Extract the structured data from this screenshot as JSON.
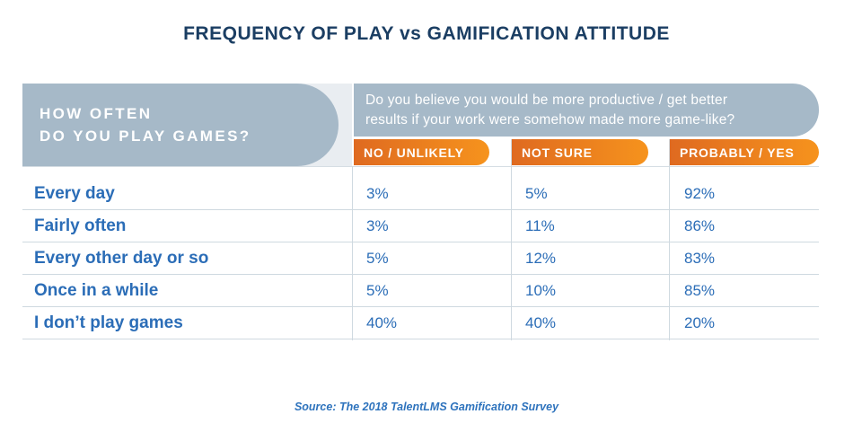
{
  "title": "FREQUENCY OF PLAY vs GAMIFICATION ATTITUDE",
  "header": {
    "row_question": {
      "line1": "HOW OFTEN",
      "line2": "DO YOU PLAY GAMES?"
    },
    "column_question": {
      "line1": "Do you believe you would be more productive / get better",
      "line2": "results if your work were somehow made more game-like?"
    },
    "columns": [
      "NO / UNLIKELY",
      "NOT SURE",
      "PROBABLY / YES"
    ]
  },
  "table": {
    "rows": [
      {
        "label": "Every day",
        "values": [
          "3%",
          "5%",
          "92%"
        ]
      },
      {
        "label": "Fairly often",
        "values": [
          "3%",
          "11%",
          "86%"
        ]
      },
      {
        "label": "Every other day or so",
        "values": [
          "5%",
          "12%",
          "83%"
        ]
      },
      {
        "label": "Once in a while",
        "values": [
          "5%",
          "10%",
          "85%"
        ]
      },
      {
        "label": "I don’t play games",
        "values": [
          "40%",
          "40%",
          "20%"
        ]
      }
    ]
  },
  "source": "Source: The 2018 TalentLMS Gamification Survey",
  "colors": {
    "title_navy": "#1b3e63",
    "row_text_blue": "#2b6db7",
    "header_gray_blue": "#a6b9c8",
    "header_light_gray": "#e9edf1",
    "pill_orange_start": "#df6a20",
    "pill_orange_end": "#f6931d",
    "separator_gray": "#cfd9e0"
  },
  "chart_data": {
    "type": "table",
    "title": "FREQUENCY OF PLAY vs GAMIFICATION ATTITUDE",
    "row_header_question": "HOW OFTEN DO YOU PLAY GAMES?",
    "column_header_question": "Do you believe you would be more productive / get better results if your work were somehow made more game-like?",
    "categories": [
      "Every day",
      "Fairly often",
      "Every other day or so",
      "Once in a while",
      "I don’t play games"
    ],
    "series": [
      {
        "name": "NO / UNLIKELY",
        "values": [
          3,
          3,
          5,
          5,
          40
        ]
      },
      {
        "name": "NOT SURE",
        "values": [
          5,
          11,
          12,
          10,
          40
        ]
      },
      {
        "name": "PROBABLY / YES",
        "values": [
          92,
          86,
          83,
          85,
          20
        ]
      }
    ],
    "unit": "%",
    "source": "Source: The 2018 TalentLMS Gamification Survey"
  }
}
